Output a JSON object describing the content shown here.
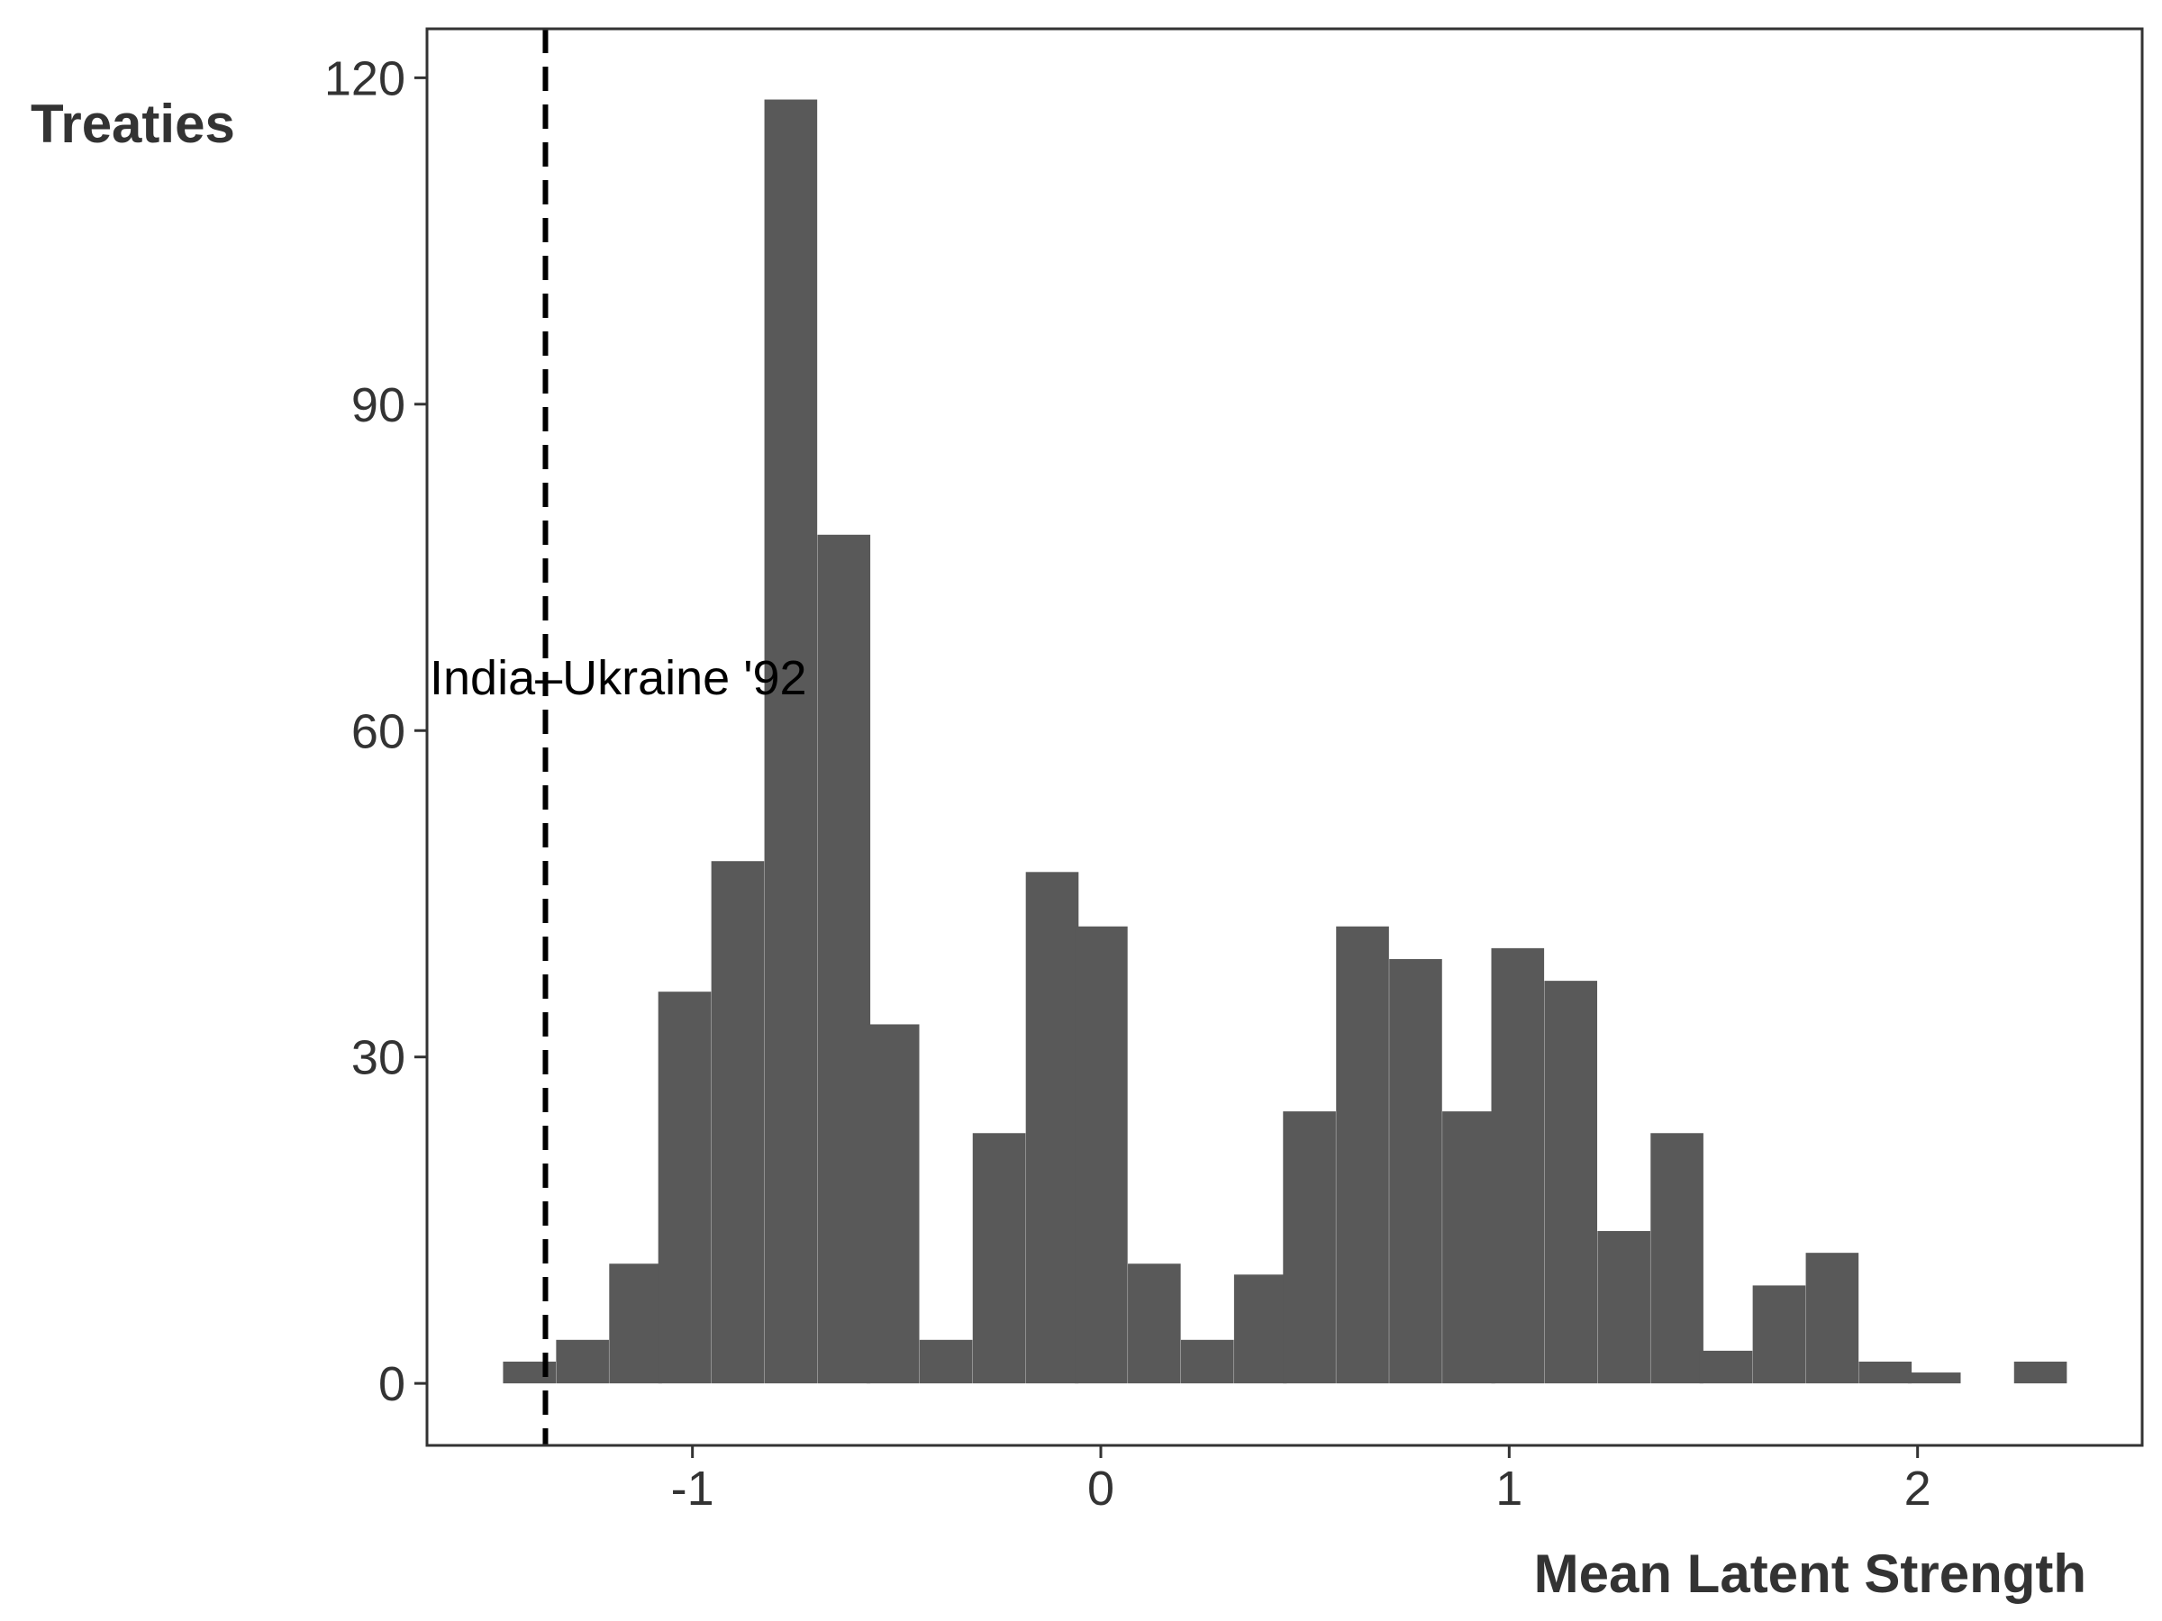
{
  "chart_data": {
    "type": "bar",
    "subtype": "histogram",
    "title": "",
    "xlabel": "Mean Latent Strength",
    "ylabel": "Treaties",
    "xlim": [
      -1.65,
      2.55
    ],
    "ylim": [
      -5.7,
      124.5
    ],
    "xticks": [
      -1,
      0,
      1,
      2
    ],
    "yticks": [
      0,
      30,
      60,
      90,
      120
    ],
    "x_tick_labels": [
      "-1",
      "0",
      "1",
      "2"
    ],
    "y_tick_labels": [
      "0",
      "30",
      "60",
      "90",
      "120"
    ],
    "bin_width": 0.1275,
    "bins": [
      {
        "x": -1.4,
        "value": 2
      },
      {
        "x": -1.27,
        "value": 4
      },
      {
        "x": -1.14,
        "value": 11
      },
      {
        "x": -1.02,
        "value": 36
      },
      {
        "x": -0.89,
        "value": 48
      },
      {
        "x": -0.76,
        "value": 118
      },
      {
        "x": -0.63,
        "value": 78
      },
      {
        "x": -0.51,
        "value": 33
      },
      {
        "x": -0.38,
        "value": 4
      },
      {
        "x": -0.25,
        "value": 23
      },
      {
        "x": -0.12,
        "value": 47
      },
      {
        "x": 0.0,
        "value": 42
      },
      {
        "x": 0.13,
        "value": 11
      },
      {
        "x": 0.26,
        "value": 4
      },
      {
        "x": 0.39,
        "value": 10
      },
      {
        "x": 0.51,
        "value": 25
      },
      {
        "x": 0.64,
        "value": 42
      },
      {
        "x": 0.77,
        "value": 39
      },
      {
        "x": 0.9,
        "value": 25
      },
      {
        "x": 1.02,
        "value": 40
      },
      {
        "x": 1.15,
        "value": 37
      },
      {
        "x": 1.28,
        "value": 14
      },
      {
        "x": 1.41,
        "value": 23
      },
      {
        "x": 1.53,
        "value": 3
      },
      {
        "x": 1.66,
        "value": 9
      },
      {
        "x": 1.79,
        "value": 12
      },
      {
        "x": 1.92,
        "value": 2
      },
      {
        "x": 2.04,
        "value": 1
      },
      {
        "x": 2.17,
        "value": 0
      },
      {
        "x": 2.3,
        "value": 2
      }
    ],
    "bar_color": "#595959",
    "reference_line": {
      "x": -1.36,
      "style": "dashed",
      "color": "#000000"
    },
    "annotation": {
      "text": "India–Ukraine '92",
      "x": -1.65,
      "y": 65
    },
    "grid": false,
    "legend": "none"
  }
}
